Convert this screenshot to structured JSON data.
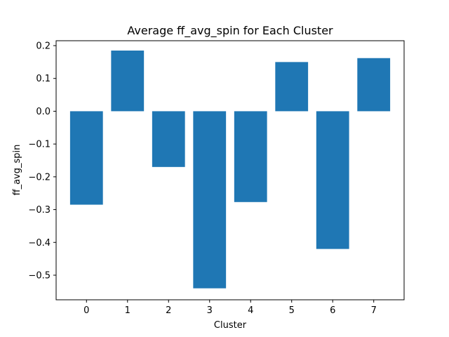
{
  "chart_data": {
    "type": "bar",
    "title": "Average ff_avg_spin for Each Cluster",
    "xlabel": "Cluster",
    "ylabel": "ff_avg_spin",
    "categories": [
      "0",
      "1",
      "2",
      "3",
      "4",
      "5",
      "6",
      "7"
    ],
    "values": [
      -0.285,
      0.185,
      -0.17,
      -0.54,
      -0.277,
      0.15,
      -0.42,
      0.162
    ],
    "ylim": [
      -0.575,
      0.215
    ],
    "yticks": [
      "0.2",
      "0.1",
      "0.0",
      "−0.1",
      "−0.2",
      "−0.3",
      "−0.4",
      "−0.5"
    ],
    "ytick_values": [
      0.2,
      0.1,
      0.0,
      -0.1,
      -0.2,
      -0.3,
      -0.4,
      -0.5
    ],
    "grid": false,
    "bar_color": "#1f77b4"
  }
}
